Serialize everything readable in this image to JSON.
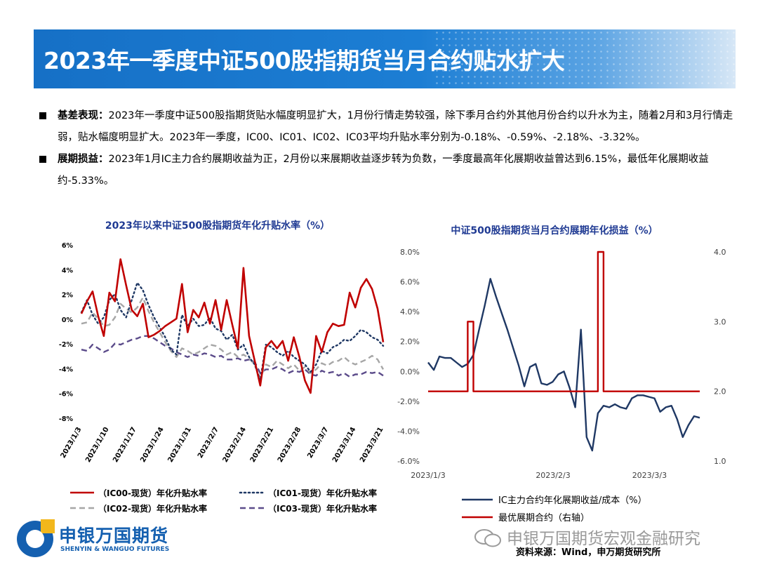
{
  "title": "2023年一季度中证500股指期货当月合约贴水扩大",
  "bullets": [
    {
      "lead": "基差表现：",
      "text": "2023年一季度中证500股指期货贴水幅度明显扩大，1月份行情走势较强，除下季月合约外其他月份合约以升水为主，随着2月和3月行情走弱，贴水幅度明显扩大。2023年一季度，IC00、IC01、IC02、IC03平均升贴水率分别为-0.18%、-0.59%、-2.18%、-3.32%。"
    },
    {
      "lead": "展期损益：",
      "text": "2023年1月IC主力合约展期收益为正，2月份以来展期收益逐步转为负数，一季度最高年化展期收益曾达到6.15%，最低年化展期收益约-5.33%。"
    }
  ],
  "chart_data": [
    {
      "type": "line",
      "title": "2023年以来中证500股指期货年化升贴水率（%）",
      "ylim": [
        -8,
        6
      ],
      "yticks": [
        "6%",
        "4%",
        "2%",
        "0%",
        "-2%",
        "-4%",
        "-6%",
        "-8%"
      ],
      "xticks": [
        "2023/1/3",
        "2023/1/10",
        "2023/1/17",
        "2023/1/24",
        "2023/1/31",
        "2023/2/7",
        "2023/2/14",
        "2023/2/21",
        "2023/2/28",
        "2023/3/7",
        "2023/3/14",
        "2023/3/21"
      ],
      "series": [
        {
          "name": "（IC00-现货）年化升贴水率",
          "color": "#c00000",
          "style": "solid",
          "values": [
            0.5,
            1.5,
            2.3,
            0.3,
            -1.3,
            2.2,
            1.5,
            4.9,
            2.8,
            0.8,
            0.3,
            1.3,
            -1.4,
            -1.2,
            -0.9,
            -0.5,
            -0.2,
            0.1,
            2.9,
            -1.0,
            0.8,
            0.2,
            1.4,
            -0.3,
            1.6,
            -0.8,
            1.6,
            -0.4,
            -2.3,
            4.2,
            -1.3,
            -3.3,
            -5.3,
            -2.2,
            -1.7,
            -2.3,
            -1.7,
            -3.3,
            -1.4,
            -3.0,
            -4.9,
            -5.9,
            -1.3,
            -2.6,
            -1.0,
            -0.3,
            -0.5,
            -0.4,
            2.2,
            1.0,
            2.6,
            3.3,
            2.5,
            0.9,
            -1.8
          ]
        },
        {
          "name": "（IC01-现货）年化升贴水率",
          "color": "#1f3864",
          "style": "dotted",
          "values": [
            0.6,
            1.6,
            0.4,
            -0.3,
            0.2,
            1.6,
            2.1,
            0.8,
            0.2,
            1.6,
            3.0,
            2.4,
            1.2,
            0.2,
            -0.6,
            -1.4,
            -2.4,
            -2.8,
            0.4,
            -0.5,
            0.1,
            -0.5,
            -0.4,
            0.2,
            -0.7,
            -0.9,
            -1.6,
            -1.2,
            -2.4,
            -2.0,
            -3.0,
            -3.6,
            -4.9,
            -2.0,
            -2.2,
            -2.6,
            -2.9,
            -2.5,
            -3.0,
            -3.3,
            -3.6,
            -4.2,
            -3.6,
            -2.5,
            -2.7,
            -2.2,
            -2.0,
            -1.6,
            -1.7,
            -1.3,
            -0.8,
            -1.0,
            -1.4,
            -1.6,
            -2.1
          ]
        },
        {
          "name": "（IC02-现货）年化升贴水率",
          "color": "#a6a6a6",
          "style": "dashed",
          "values": [
            -0.3,
            -0.2,
            0.6,
            0.1,
            -0.5,
            -0.4,
            0.2,
            1.3,
            0.9,
            0.6,
            1.0,
            1.8,
            0.7,
            -0.2,
            -1.0,
            -1.8,
            -2.5,
            -3.0,
            -2.3,
            -2.5,
            -2.8,
            -2.6,
            -2.3,
            -2.0,
            -2.1,
            -2.4,
            -2.8,
            -2.6,
            -3.0,
            -2.8,
            -3.1,
            -3.6,
            -4.7,
            -3.6,
            -3.8,
            -3.3,
            -3.6,
            -3.9,
            -3.6,
            -4.1,
            -3.8,
            -4.3,
            -4.0,
            -3.5,
            -3.7,
            -3.4,
            -3.3,
            -3.0,
            -3.4,
            -3.6,
            -3.4,
            -3.2,
            -2.9,
            -3.2,
            -4.0
          ]
        },
        {
          "name": "（IC03-现货）年化升贴水率",
          "color": "#5b4b8a",
          "style": "dashed",
          "values": [
            -2.4,
            -2.5,
            -2.0,
            -2.3,
            -2.6,
            -2.4,
            -1.9,
            -2.0,
            -1.8,
            -1.6,
            -1.5,
            -1.3,
            -1.3,
            -1.5,
            -1.8,
            -2.1,
            -2.3,
            -2.6,
            -2.8,
            -3.0,
            -2.8,
            -2.9,
            -2.7,
            -2.8,
            -3.0,
            -2.9,
            -3.2,
            -3.2,
            -3.1,
            -3.3,
            -3.2,
            -3.4,
            -4.3,
            -4.0,
            -4.0,
            -3.8,
            -4.0,
            -4.3,
            -4.1,
            -4.2,
            -4.0,
            -4.4,
            -4.5,
            -4.1,
            -4.3,
            -4.2,
            -4.5,
            -4.3,
            -4.6,
            -4.4,
            -4.4,
            -4.2,
            -4.3,
            -4.2,
            -4.5
          ]
        }
      ]
    },
    {
      "type": "line",
      "title": "中证500股指期货当月合约展期年化损益（%）",
      "ylim": [
        -6,
        8
      ],
      "yticks_left": [
        "8.0%",
        "6.0%",
        "4.0%",
        "2.0%",
        "0.0%",
        "-2.0%",
        "-4.0%",
        "-6.0%"
      ],
      "ylim_right": [
        1,
        4
      ],
      "yticks_right": [
        "4.0",
        "3.0",
        "2.0",
        "1.0"
      ],
      "xticks": [
        "2023/1/3",
        "2023/2/3",
        "2023/3/3"
      ],
      "series": [
        {
          "name": "IC主力合约年化展期收益/成本（%）",
          "color": "#1f3864",
          "axis": "left",
          "values": [
            0.6,
            0.1,
            1.0,
            0.9,
            0.9,
            0.6,
            0.3,
            0.5,
            1.1,
            2.8,
            4.4,
            6.2,
            5.0,
            3.9,
            2.8,
            1.6,
            0.4,
            -1.0,
            0.3,
            0.5,
            -0.8,
            -0.9,
            -0.7,
            -0.2,
            0.0,
            -1.1,
            -2.4,
            2.8,
            -4.4,
            -5.3,
            -2.8,
            -2.3,
            -2.4,
            -2.2,
            -2.4,
            -2.5,
            -1.8,
            -1.6,
            -1.6,
            -1.7,
            -1.8,
            -2.7,
            -2.4,
            -2.3,
            -3.2,
            -4.4,
            -3.6,
            -3.0,
            -3.1
          ]
        },
        {
          "name": "最优展期合约（右轴）",
          "color": "#c00000",
          "axis": "right",
          "values": [
            2,
            2,
            2,
            2,
            2,
            2,
            2,
            3,
            2,
            2,
            2,
            2,
            2,
            2,
            2,
            2,
            2,
            2,
            2,
            2,
            2,
            2,
            2,
            2,
            2,
            2,
            2,
            2,
            2,
            2,
            4,
            2,
            2,
            2,
            2,
            2,
            2,
            2,
            2,
            2,
            2,
            2,
            2,
            2,
            2,
            2,
            2,
            2,
            2
          ]
        }
      ]
    }
  ],
  "logo": {
    "cn": "申银万国期货",
    "en": "SHENYIN & WANGUO FUTURES"
  },
  "watermark": "申银万国期货宏观金融研究",
  "source": "资料来源：Wind，申万期货研究所"
}
